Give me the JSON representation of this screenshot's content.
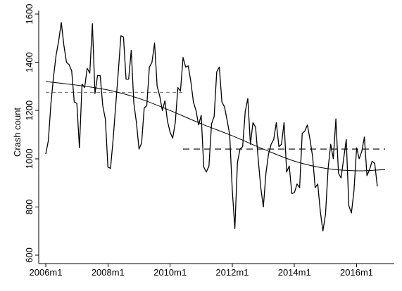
{
  "chart_data": {
    "type": "line",
    "title": "",
    "xlabel": "",
    "ylabel": "Crash count",
    "x_ticks": [
      {
        "label": "2006m1",
        "x": 2006.0
      },
      {
        "label": "2008m1",
        "x": 2008.0
      },
      {
        "label": "2010m1",
        "x": 2010.0
      },
      {
        "label": "2012m1",
        "x": 2012.0
      },
      {
        "label": "2014m1",
        "x": 2014.0
      },
      {
        "label": "2016m1",
        "x": 2016.0
      }
    ],
    "y_ticks": [
      600,
      800,
      1000,
      1200,
      1400,
      1600
    ],
    "xlim": [
      "2006m1",
      "2016m12"
    ],
    "ylim": [
      600,
      1600
    ],
    "grid": false,
    "series": [
      {
        "style": "solid-line",
        "start": "2006m1",
        "values": [
          1020,
          1075,
          1230,
          1340,
          1430,
          1490,
          1565,
          1470,
          1400,
          1390,
          1365,
          1235,
          1230,
          1045,
          1310,
          1295,
          1375,
          1355,
          1560,
          1270,
          1345,
          1345,
          1220,
          1165,
          965,
          960,
          1080,
          1220,
          1360,
          1510,
          1505,
          1330,
          1330,
          1450,
          1230,
          1150,
          1040,
          1065,
          1210,
          1220,
          1380,
          1400,
          1480,
          1300,
          1260,
          1200,
          1240,
          1155,
          1110,
          1085,
          1150,
          1295,
          1280,
          1420,
          1380,
          1385,
          1320,
          1235,
          1200,
          1140,
          1180,
          965,
          945,
          970,
          1145,
          1175,
          1360,
          1380,
          1235,
          1215,
          1160,
          1100,
          870,
          710,
          985,
          1040,
          1050,
          1195,
          1250,
          1060,
          1150,
          1130,
          1000,
          880,
          800,
          940,
          1020,
          1060,
          1080,
          1150,
          1050,
          1060,
          1150,
          945,
          970,
          855,
          860,
          895,
          880,
          1105,
          1115,
          1140,
          1080,
          1010,
          880,
          895,
          780,
          700,
          770,
          960,
          1060,
          1000,
          1165,
          940,
          920,
          1000,
          1080,
          805,
          775,
          870,
          1045,
          1000,
          1030,
          1090,
          930,
          955,
          990,
          980,
          885
        ]
      }
    ],
    "trend": {
      "style": "smooth-line",
      "points": [
        {
          "x": "2006m1",
          "y": 1320
        },
        {
          "x": "2007m1",
          "y": 1305
        },
        {
          "x": "2008m1",
          "y": 1285
        },
        {
          "x": "2009m1",
          "y": 1250
        },
        {
          "x": "2010m1",
          "y": 1200
        },
        {
          "x": "2011m1",
          "y": 1145
        },
        {
          "x": "2012m1",
          "y": 1095
        },
        {
          "x": "2013m1",
          "y": 1040
        },
        {
          "x": "2014m1",
          "y": 990
        },
        {
          "x": "2015m1",
          "y": 960
        },
        {
          "x": "2016m1",
          "y": 950
        },
        {
          "x": "2016m12",
          "y": 955
        }
      ]
    },
    "reference_lines": [
      {
        "style": "dashed-gray",
        "y": 1275,
        "from": "2006m1",
        "to": "2010m6"
      },
      {
        "style": "dashed-black",
        "y": 1040,
        "from": "2010m6",
        "to": "2016m12"
      }
    ]
  }
}
